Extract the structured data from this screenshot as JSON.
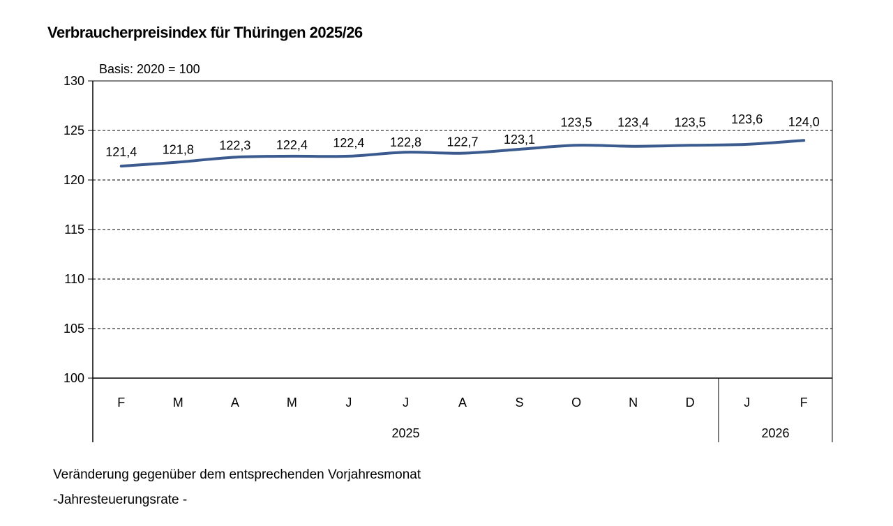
{
  "chart_data": {
    "type": "line",
    "title": "Verbraucherpreisindex für Thüringen 2025/26",
    "subtitle": "Basis: 2020 = 100",
    "categories": [
      "F",
      "M",
      "A",
      "M",
      "J",
      "J",
      "A",
      "S",
      "O",
      "N",
      "D",
      "J",
      "F"
    ],
    "year_groups": [
      {
        "label": "2025",
        "count": 11
      },
      {
        "label": "2026",
        "count": 2
      }
    ],
    "series": [
      {
        "values": [
          121.4,
          121.8,
          122.3,
          122.4,
          122.4,
          122.8,
          122.7,
          123.1,
          123.5,
          123.4,
          123.5,
          123.6,
          124.0
        ]
      }
    ],
    "data_labels": [
      "121,4",
      "121,8",
      "122,3",
      "122,4",
      "122,4",
      "122,8",
      "122,7",
      "123,1",
      "123,5",
      "123,4",
      "123,5",
      "123,6",
      "124,0"
    ],
    "ylim": [
      100,
      130
    ],
    "yticks": [
      100,
      105,
      110,
      115,
      120,
      125,
      130
    ],
    "grid": true,
    "line_color": "#3b5b8f"
  },
  "footer": {
    "line1": "Veränderung gegenüber dem entsprechenden  Vorjahresmonat",
    "line2": " -Jahresteuerungsrate  -"
  }
}
